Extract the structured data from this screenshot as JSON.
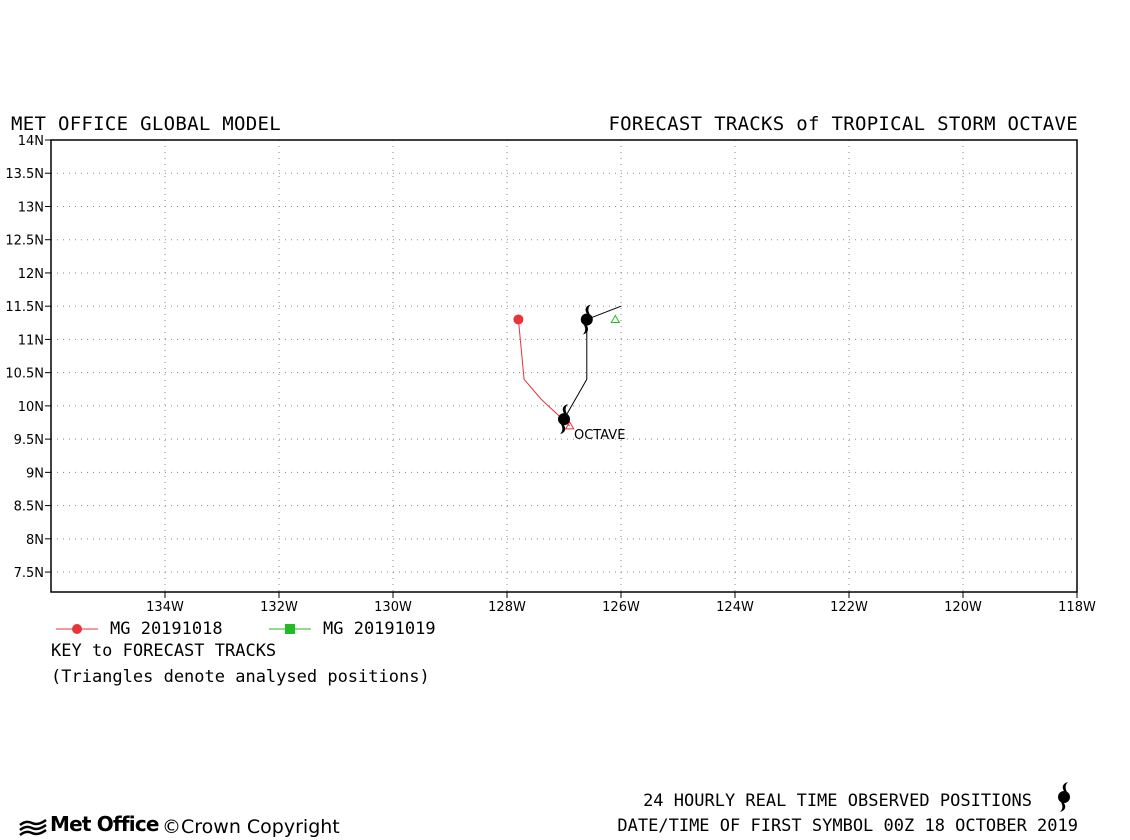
{
  "header": {
    "left_title": "MET OFFICE GLOBAL MODEL",
    "right_title": "FORECAST TRACKS of TROPICAL STORM OCTAVE"
  },
  "map": {
    "lon_range": [
      -136,
      -118
    ],
    "lat_range": [
      7.2,
      14
    ],
    "lat_ticks": [
      {
        "value": 14,
        "label": "14N"
      },
      {
        "value": 13.5,
        "label": "13.5N"
      },
      {
        "value": 13,
        "label": "13N"
      },
      {
        "value": 12.5,
        "label": "12.5N"
      },
      {
        "value": 12,
        "label": "12N"
      },
      {
        "value": 11.5,
        "label": "11.5N"
      },
      {
        "value": 11,
        "label": "11N"
      },
      {
        "value": 10.5,
        "label": "10.5N"
      },
      {
        "value": 10,
        "label": "10N"
      },
      {
        "value": 9.5,
        "label": "9.5N"
      },
      {
        "value": 9,
        "label": "9N"
      },
      {
        "value": 8.5,
        "label": "8.5N"
      },
      {
        "value": 8,
        "label": "8N"
      },
      {
        "value": 7.5,
        "label": "7.5N"
      }
    ],
    "lon_ticks": [
      {
        "value": -134,
        "label": "134W"
      },
      {
        "value": -132,
        "label": "132W"
      },
      {
        "value": -130,
        "label": "130W"
      },
      {
        "value": -128,
        "label": "128W"
      },
      {
        "value": -126,
        "label": "126W"
      },
      {
        "value": -124,
        "label": "124W"
      },
      {
        "value": -122,
        "label": "122W"
      },
      {
        "value": -120,
        "label": "120W"
      },
      {
        "value": -118,
        "label": "118W"
      }
    ],
    "grid": "dotted",
    "observed_track": [
      {
        "lon": -127,
        "lat": 9.8,
        "symbol": true
      },
      {
        "lon": -126.6,
        "lat": 10.4,
        "symbol": false
      },
      {
        "lon": -126.6,
        "lat": 11.3,
        "symbol": true
      },
      {
        "lon": -126.0,
        "lat": 11.5,
        "symbol": false
      }
    ],
    "storm_label": {
      "text": "OCTAVE",
      "lon": -127,
      "lat": 9.8
    },
    "forecast_tracks": [
      {
        "name": "MG 20191018",
        "color": "#e8333a",
        "marker": "circle",
        "points": [
          {
            "lon": -126.9,
            "lat": 9.7
          },
          {
            "lon": -127.4,
            "lat": 10.1
          },
          {
            "lon": -127.7,
            "lat": 10.4
          },
          {
            "lon": -127.8,
            "lat": 11.3
          }
        ],
        "analysed_triangle": {
          "lon": -126.9,
          "lat": 9.7
        }
      },
      {
        "name": "MG 20191019",
        "color": "#22bb22",
        "marker": "square",
        "points": [],
        "analysed_triangle": {
          "lon": -126.1,
          "lat": 11.3
        }
      }
    ]
  },
  "legend": {
    "key_title": "KEY to FORECAST TRACKS",
    "key_note": "(Triangles denote analysed positions)"
  },
  "footer": {
    "logo_text": "Met Office",
    "copyright": "©Crown Copyright",
    "observed_note": "24 HOURLY REAL TIME OBSERVED POSITIONS",
    "date_time": "DATE/TIME OF FIRST SYMBOL 00Z 18 OCTOBER 2019"
  }
}
